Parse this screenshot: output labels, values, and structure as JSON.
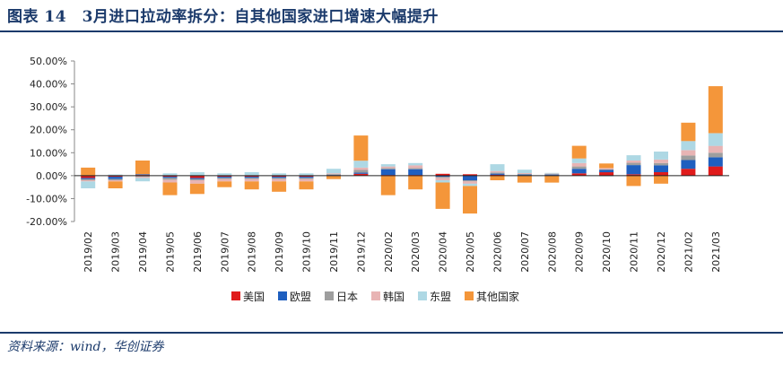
{
  "header": {
    "title": "图表 14　3月进口拉动率拆分：自其他国家进口增速大幅提升"
  },
  "footer": {
    "source": "资料来源：wind，华创证券"
  },
  "colors": {
    "rule": "#1b3a6b",
    "美国": "#e01b1b",
    "欧盟": "#1f5fbf",
    "日本": "#9e9e9e",
    "韩国": "#e8b4b4",
    "东盟": "#aed8e4",
    "其他国家": "#f4963a"
  },
  "chart_data": {
    "type": "bar",
    "stacked": true,
    "ylim": [
      -20,
      50
    ],
    "yticks": [
      "50.00%",
      "40.00%",
      "30.00%",
      "20.00%",
      "10.00%",
      "0.00%",
      "-10.00%",
      "-20.00%"
    ],
    "categories": [
      "2019/02",
      "2019/03",
      "2019/04",
      "2019/05",
      "2019/06",
      "2019/07",
      "2019/08",
      "2019/09",
      "2019/10",
      "2019/11",
      "2019/12",
      "2020/02",
      "2020/03",
      "2020/04",
      "2020/05",
      "2020/06",
      "2020/07",
      "2020/08",
      "2020/09",
      "2020/10",
      "2020/11",
      "2020/12",
      "2021/02",
      "2021/03"
    ],
    "legend_position": "bottom",
    "series": [
      {
        "name": "美国",
        "values": [
          -1.0,
          -0.5,
          0.3,
          -0.5,
          -1.0,
          -0.5,
          -0.5,
          -0.5,
          -0.5,
          0.2,
          0.8,
          0.3,
          0.3,
          0.8,
          0.6,
          0.4,
          0.2,
          0.2,
          1.0,
          1.5,
          0.6,
          1.5,
          3.0,
          4.0
        ]
      },
      {
        "name": "欧盟",
        "values": [
          -0.5,
          -1.0,
          0.3,
          -0.5,
          -0.5,
          -0.5,
          -0.5,
          -0.5,
          -0.5,
          0.2,
          0.5,
          2.5,
          2.5,
          -0.5,
          -2.0,
          0.5,
          0.3,
          0.3,
          2.0,
          1.0,
          4.0,
          3.0,
          3.8,
          4.0
        ]
      },
      {
        "name": "日本",
        "values": [
          -0.5,
          -0.5,
          -0.5,
          -0.8,
          -0.5,
          -0.5,
          -0.5,
          -0.5,
          -0.5,
          0.3,
          1.2,
          0.5,
          0.5,
          -0.5,
          -0.5,
          0.5,
          0.3,
          0.2,
          1.0,
          0.3,
          1.0,
          1.0,
          2.0,
          2.0
        ]
      },
      {
        "name": "韩国",
        "values": [
          -0.5,
          -0.5,
          -0.5,
          -1.2,
          -1.5,
          -1.0,
          -1.0,
          -1.0,
          -1.0,
          0.3,
          1.0,
          0.7,
          1.2,
          -1.0,
          -1.0,
          0.6,
          0.3,
          0.2,
          1.5,
          0.5,
          1.0,
          1.5,
          2.3,
          3.0
        ]
      },
      {
        "name": "东盟",
        "values": [
          -3.0,
          0.5,
          -1.5,
          1.0,
          1.5,
          1.0,
          1.5,
          1.0,
          1.0,
          2.0,
          3.0,
          1.0,
          1.0,
          -1.0,
          -1.0,
          3.0,
          1.5,
          0.3,
          2.0,
          -0.3,
          2.3,
          3.5,
          4.0,
          5.5
        ]
      },
      {
        "name": "其他国家",
        "values": [
          3.5,
          -3.0,
          6.0,
          -5.5,
          -4.5,
          -2.5,
          -3.5,
          -4.5,
          -3.5,
          -1.5,
          11.0,
          -8.5,
          -6.0,
          -11.5,
          -12.0,
          -2.0,
          -3.0,
          -3.0,
          5.5,
          2.0,
          -4.5,
          -3.5,
          8.0,
          20.5
        ]
      }
    ]
  }
}
